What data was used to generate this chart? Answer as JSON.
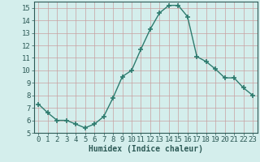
{
  "x": [
    0,
    1,
    2,
    3,
    4,
    5,
    6,
    7,
    8,
    9,
    10,
    11,
    12,
    13,
    14,
    15,
    16,
    17,
    18,
    19,
    20,
    21,
    22,
    23
  ],
  "y": [
    7.3,
    6.6,
    6.0,
    6.0,
    5.7,
    5.4,
    5.7,
    6.3,
    7.8,
    9.5,
    10.0,
    11.7,
    13.3,
    14.6,
    15.2,
    15.2,
    14.3,
    11.1,
    10.7,
    10.1,
    9.4,
    9.4,
    8.6,
    8.0
  ],
  "line_color": "#2d7b6e",
  "marker": "+",
  "marker_size": 5,
  "linewidth": 1.0,
  "xlabel": "Humidex (Indice chaleur)",
  "xlabel_fontsize": 7,
  "ylim": [
    5,
    15.5
  ],
  "xlim": [
    -0.5,
    23.5
  ],
  "yticks": [
    5,
    6,
    7,
    8,
    9,
    10,
    11,
    12,
    13,
    14,
    15
  ],
  "xticks": [
    0,
    1,
    2,
    3,
    4,
    5,
    6,
    7,
    8,
    9,
    10,
    11,
    12,
    13,
    14,
    15,
    16,
    17,
    18,
    19,
    20,
    21,
    22,
    23
  ],
  "background_color": "#d4eeec",
  "grid_color": "#c0d8d6",
  "tick_fontsize": 6.5
}
